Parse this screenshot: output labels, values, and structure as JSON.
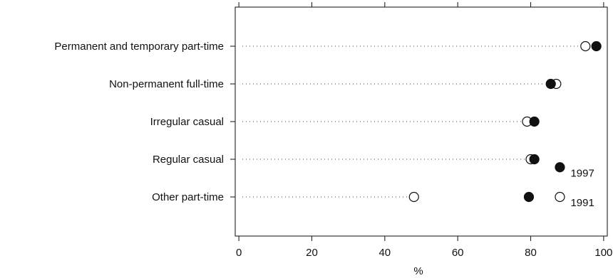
{
  "chart_data": {
    "type": "scatter",
    "subtype": "dot-plot",
    "title": "",
    "xlabel": "%",
    "ylabel": "",
    "xlim": [
      -1,
      101
    ],
    "xticks": [
      0,
      20,
      40,
      60,
      80,
      100
    ],
    "grid": false,
    "categories": [
      "Permanent and temporary part-time",
      "Non-permanent full-time",
      "Irregular casual",
      "Regular casual",
      "Other part-time"
    ],
    "series": [
      {
        "name": "1997",
        "marker": "filled-circle",
        "values": [
          98,
          85.5,
          81,
          81,
          79.5
        ]
      },
      {
        "name": "1991",
        "marker": "open-circle",
        "values": [
          95,
          87,
          79,
          80,
          48
        ]
      }
    ],
    "legend": {
      "placement": "inside-right",
      "entries": [
        {
          "label": "1997",
          "series": "1997",
          "x": 88,
          "category": "Regular casual",
          "offset": 0.25
        },
        {
          "label": "1991",
          "series": "1991",
          "x": 88,
          "category": "Other part-time",
          "offset": 0.0
        }
      ]
    },
    "colors": {
      "ink": "#111111",
      "fill_open": "#ffffff"
    }
  }
}
